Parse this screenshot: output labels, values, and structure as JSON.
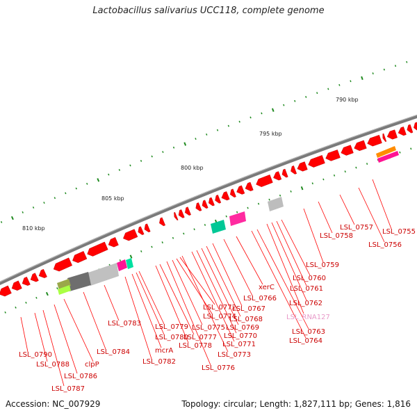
{
  "title": "Lactobacillus salivarius UCC118, complete genome",
  "footer": {
    "accession": "Accession: NC_007929",
    "summary": "Topology: circular; Length: 1,827,111 bp; Genes: 1,816"
  },
  "scale_labels": [
    "790 kbp",
    "795 kbp",
    "800 kbp",
    "805 kbp",
    "810 kbp"
  ],
  "gene_labels": [
    "LSL_0755",
    "LSL_0756",
    "LSL_0757",
    "LSL_0758",
    "LSL_0759",
    "LSL_0760",
    "LSL_0761",
    "LSL_0762",
    "LSL_RNA127",
    "LSL_0763",
    "LSL_0764",
    "xerC",
    "LSL_0766",
    "LSL_0767",
    "LSL_0768",
    "LSL_0769",
    "LSL_0770",
    "LSL_0771",
    "LSL_0773",
    "LSL_0772",
    "LSL_0774",
    "LSL_0775",
    "LSL_0776",
    "LSL_0777",
    "LSL_0778",
    "LSL_0779",
    "LSL_0780",
    "mcrA",
    "LSL_0782",
    "LSL_0783",
    "LSL_0784",
    "clpP",
    "LSL_0786",
    "LSL_0787",
    "LSL_0788",
    "LSL_0790"
  ],
  "colors": {
    "gene": "#ff0000",
    "rna_label": "#e899c8",
    "backbone": "#7a7a7a",
    "tick": "#1f8a1f",
    "label": "#cc0000"
  }
}
